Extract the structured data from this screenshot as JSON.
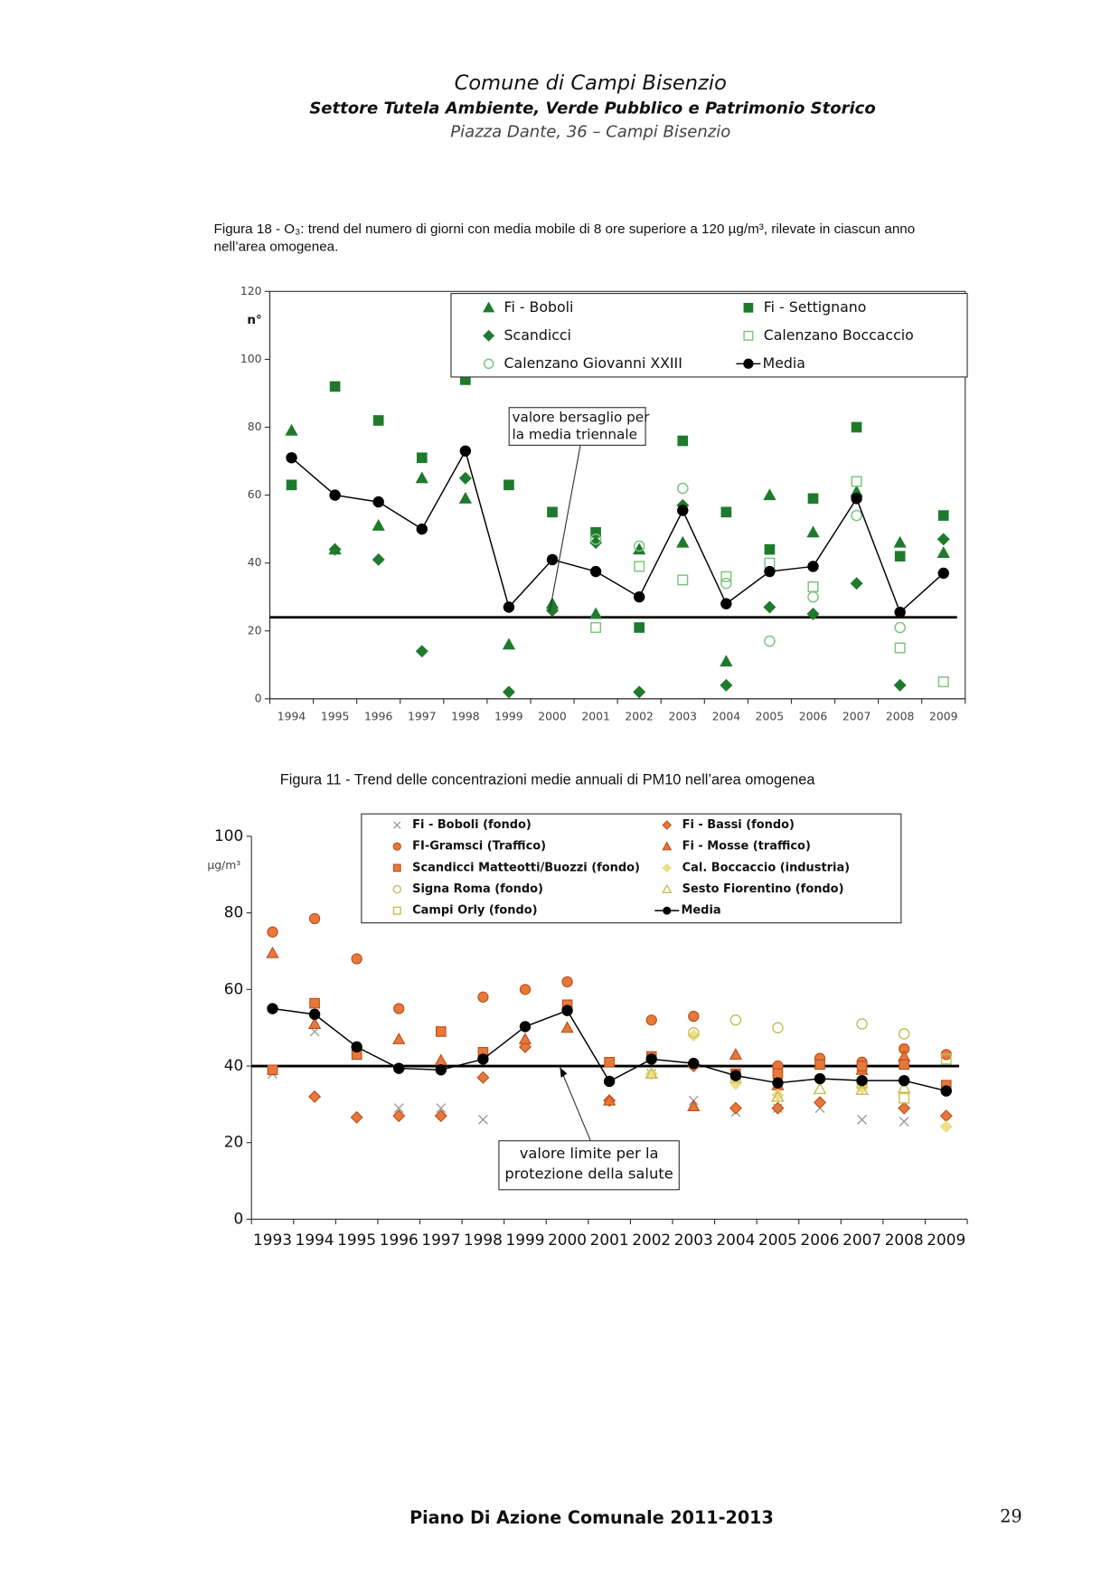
{
  "header": {
    "title": "Comune di Campi Bisenzio",
    "subtitle": "Settore Tutela Ambiente, Verde Pubblico e Patrimonio Storico",
    "address": "Piazza Dante, 36 – Campi Bisenzio"
  },
  "chart_data": [
    {
      "type": "scatter",
      "title": "Figura 18 - O₃: trend del numero di giorni con media mobile di 8 ore superiore a 120 µg/m³, rilevate in ciascun anno nell’area omogenea.",
      "y_label": "n°",
      "categories": [
        "1994",
        "1995",
        "1996",
        "1997",
        "1998",
        "1999",
        "2000",
        "2001",
        "2002",
        "2003",
        "2004",
        "2005",
        "2006",
        "2007",
        "2008",
        "2009"
      ],
      "ylim": [
        0,
        120
      ],
      "yticks": [
        0,
        20,
        40,
        60,
        80,
        100,
        120
      ],
      "reference_line": 24,
      "annotation": [
        "valore bersaglio per",
        "la media triennale"
      ],
      "legend": "top-right",
      "series": [
        {
          "name": "Fi - Boboli",
          "marker": "triangle",
          "color": "#1f7a2e",
          "values": [
            79,
            44,
            51,
            65,
            59,
            16,
            28,
            25,
            44,
            46,
            11,
            60,
            49,
            61,
            46,
            43
          ]
        },
        {
          "name": "Fi - Settignano",
          "marker": "square",
          "color": "#1f7a2e",
          "values": [
            63,
            92,
            82,
            71,
            94,
            63,
            55,
            49,
            21,
            76,
            55,
            44,
            59,
            80,
            42,
            54
          ]
        },
        {
          "name": "Scandicci",
          "marker": "diamond",
          "color": "#1f7a2e",
          "values": [
            null,
            44,
            41,
            14,
            65,
            2,
            26,
            46,
            2,
            57,
            4,
            27,
            25,
            34,
            4,
            47
          ]
        },
        {
          "name": "Calenzano Boccaccio",
          "marker": "square-open",
          "color": "#7cc47c",
          "values": [
            null,
            null,
            null,
            null,
            null,
            null,
            null,
            21,
            39,
            35,
            36,
            40,
            33,
            64,
            15,
            5
          ]
        },
        {
          "name": "Calenzano Giovanni XXIII",
          "marker": "circle-open",
          "color": "#7cc47c",
          "values": [
            null,
            null,
            null,
            null,
            null,
            null,
            null,
            47,
            45,
            62,
            34,
            17,
            30,
            54,
            21,
            null
          ]
        },
        {
          "name": "Media",
          "marker": "line",
          "color": "#000000",
          "values": [
            71,
            60,
            58,
            50,
            73,
            27,
            41,
            37.5,
            30,
            55.5,
            28,
            37.5,
            39,
            59,
            25.5,
            37
          ]
        }
      ]
    },
    {
      "type": "scatter",
      "title": "Figura 11 -  Trend delle concentrazioni medie annuali di PM10 nell’area omogenea",
      "y_label": "µg/m³",
      "categories": [
        "1993",
        "1994",
        "1995",
        "1996",
        "1997",
        "1998",
        "1999",
        "2000",
        "2001",
        "2002",
        "2003",
        "2004",
        "2005",
        "2006",
        "2007",
        "2008",
        "2009"
      ],
      "ylim": [
        0,
        100
      ],
      "yticks": [
        0,
        20,
        40,
        60,
        80,
        100
      ],
      "reference_line": 40,
      "annotation": [
        "valore limite per la",
        "protezione della salute"
      ],
      "legend": "top-center",
      "series": [
        {
          "name": "Fi - Boboli (fondo)",
          "marker": "x",
          "color": "#9a9a9a",
          "values": [
            38,
            49,
            null,
            29,
            29,
            26,
            null,
            null,
            null,
            38,
            31,
            28,
            29,
            29,
            26,
            25.5,
            null
          ]
        },
        {
          "name": "Fi - Bassi (fondo)",
          "marker": "diamond",
          "color": "#e8783a",
          "values": [
            null,
            32,
            26.6,
            27,
            27,
            37,
            45,
            null,
            31,
            null,
            40,
            29,
            29,
            30.5,
            null,
            29,
            27
          ]
        },
        {
          "name": "FI-Gramsci (Traffico)",
          "marker": "circle",
          "color": "#e8783a",
          "values": [
            75,
            78.5,
            68,
            55,
            null,
            58,
            60,
            62,
            null,
            52,
            53,
            null,
            40,
            42,
            41,
            44.5,
            43
          ]
        },
        {
          "name": "Fi - Mosse (traffico)",
          "marker": "triangle",
          "color": "#e8783a",
          "values": [
            69.5,
            51,
            null,
            47,
            41.5,
            null,
            47,
            50,
            31,
            null,
            29.5,
            43,
            35,
            null,
            39,
            42.5,
            null
          ]
        },
        {
          "name": "Scandicci Matteotti/Buozzi (fondo)",
          "marker": "square",
          "color": "#e8783a",
          "values": [
            39,
            56.4,
            43,
            null,
            49,
            43.6,
            null,
            56,
            41,
            42.5,
            null,
            38,
            38,
            40.4,
            40,
            40.4,
            35
          ]
        },
        {
          "name": "Cal. Boccaccio (industria)",
          "marker": "diamond",
          "color": "#f0df86",
          "values": [
            null,
            null,
            null,
            null,
            null,
            null,
            null,
            null,
            null,
            38,
            48,
            35.4,
            32.4,
            36.4,
            34.3,
            36,
            24.2
          ]
        },
        {
          "name": "Signa Roma (fondo)",
          "marker": "circle-open",
          "color": "#c9c05a",
          "values": [
            null,
            null,
            null,
            null,
            null,
            null,
            null,
            null,
            null,
            null,
            48.7,
            52,
            50,
            null,
            51,
            48.4,
            null
          ]
        },
        {
          "name": "Sesto Fiorentino (fondo)",
          "marker": "triangle-open",
          "color": "#c9c05a",
          "values": [
            null,
            null,
            null,
            null,
            null,
            null,
            null,
            null,
            null,
            38,
            null,
            null,
            32,
            34,
            33.8,
            34.3,
            null
          ]
        },
        {
          "name": "Campi Orly (fondo)",
          "marker": "square-open",
          "color": "#c9c05a",
          "values": [
            null,
            null,
            null,
            null,
            null,
            null,
            null,
            null,
            null,
            null,
            null,
            37,
            null,
            null,
            35.6,
            31.6,
            41.8
          ]
        },
        {
          "name": "Media",
          "marker": "line",
          "color": "#000000",
          "values": [
            55,
            53.5,
            45,
            39.4,
            39,
            41.8,
            50.3,
            54.5,
            36,
            41.8,
            40.7,
            37.5,
            35.6,
            36.7,
            36.2,
            36.2,
            33.5
          ]
        }
      ]
    }
  ],
  "footer": {
    "text": "Piano Di Azione Comunale  2011-2013",
    "page": "29"
  }
}
